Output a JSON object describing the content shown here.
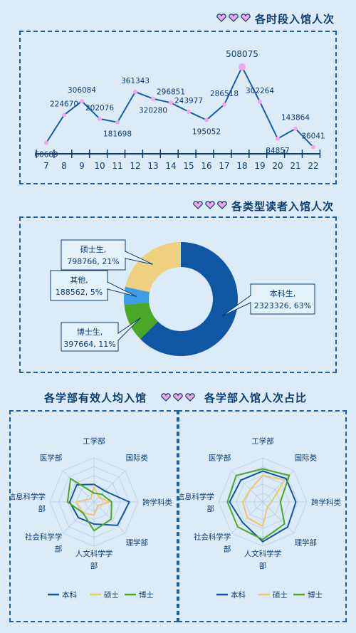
{
  "colors": {
    "background": "#dcebf8",
    "navy": "#0b3d6e",
    "line_blue": "#1a5fa0",
    "pink": "#f2a8e8",
    "doughnut": [
      "#0f57a3",
      "#4aa829",
      "#3f9be8",
      "#efd07f"
    ],
    "radar": [
      "#0f57a3",
      "#efc76f",
      "#4aa829"
    ]
  },
  "titles": {
    "hourly": "各时段入馆人次",
    "reader_types": "各类型读者入馆人次",
    "dept_avg": "各学部有效人均入馆",
    "dept_share": "各学部入馆人次占比"
  },
  "chart_data": [
    {
      "type": "line",
      "title": "各时段入馆人次",
      "x": [
        "7",
        "8",
        "9",
        "10",
        "11",
        "12",
        "13",
        "14",
        "15",
        "16",
        "17",
        "18",
        "19",
        "20",
        "21",
        "22"
      ],
      "values": [
        60689,
        224670,
        306084,
        202076,
        181698,
        361343,
        320280,
        296851,
        243977,
        195052,
        286518,
        508075,
        302264,
        84857,
        143864,
        36041
      ],
      "ylim": [
        0,
        560000
      ],
      "grid": false
    },
    {
      "type": "pie",
      "variant": "doughnut",
      "title": "各类型读者入馆人次",
      "categories": [
        "本科生",
        "博士生",
        "其他",
        "硕士生"
      ],
      "values": [
        2323326,
        397664,
        188562,
        798766
      ],
      "percents": [
        "63%",
        "11%",
        "5%",
        "21%"
      ],
      "labels": [
        {
          "name": "本科生,",
          "value": "2323326, 63%"
        },
        {
          "name": "博士生,",
          "value": "397664, 11%"
        },
        {
          "name": "其他,",
          "value": "188562, 5%"
        },
        {
          "name": "硕士生,",
          "value": "798766, 21%"
        }
      ]
    },
    {
      "type": "radar",
      "title": "各学部有效人均入馆",
      "categories": [
        "工学部",
        "国际类",
        "跨学科类",
        "理学部",
        "人文科学学部",
        "社会科学学部",
        "信息科学学部",
        "医学部"
      ],
      "axis_labels": [
        [
          "工学部"
        ],
        [
          "国际类"
        ],
        [
          "跨学科类"
        ],
        [
          "理学部"
        ],
        [
          "人文科学学",
          "部"
        ],
        [
          "社会科学学",
          "部"
        ],
        [
          "信息科学学",
          "部"
        ],
        [
          "医学部"
        ]
      ],
      "rmax": 1,
      "series": [
        {
          "name": "本科",
          "values": [
            0.4,
            0.35,
            0.8,
            0.75,
            0.5,
            0.5,
            0.55,
            0.55
          ]
        },
        {
          "name": "硕士",
          "values": [
            0.35,
            0.15,
            0.35,
            0.12,
            0.3,
            0.35,
            0.4,
            0.1
          ]
        },
        {
          "name": "博士",
          "values": [
            0.2,
            0.25,
            0.4,
            0.55,
            0.65,
            0.35,
            0.6,
            0.75
          ]
        }
      ],
      "legend": [
        "本科",
        "硕士",
        "博士"
      ]
    },
    {
      "type": "radar",
      "title": "各学部入馆人次占比",
      "categories": [
        "工学部",
        "国际类",
        "跨学科类",
        "理学部",
        "人文科学学部",
        "社会科学学部",
        "信息科学学部",
        "医学部"
      ],
      "axis_labels": [
        [
          "工学部"
        ],
        [
          "国际类"
        ],
        [
          "跨学科类"
        ],
        [
          "理学部"
        ],
        [
          "人文科学学",
          "部"
        ],
        [
          "社会科学学",
          "部"
        ],
        [
          "信息科学学",
          "部"
        ],
        [
          "医学部"
        ]
      ],
      "rmax": 1,
      "series": [
        {
          "name": "本科",
          "values": [
            0.7,
            0.75,
            0.75,
            0.8,
            0.9,
            0.65,
            0.75,
            0.7
          ]
        },
        {
          "name": "硕士",
          "values": [
            0.6,
            0.7,
            0.2,
            0.15,
            0.55,
            0.5,
            0.45,
            0.4
          ]
        },
        {
          "name": "博士",
          "values": [
            0.75,
            0.85,
            0.4,
            0.7,
            0.85,
            0.8,
            0.8,
            0.85
          ]
        }
      ],
      "legend": [
        "本科",
        "硕士",
        "博士"
      ]
    }
  ]
}
